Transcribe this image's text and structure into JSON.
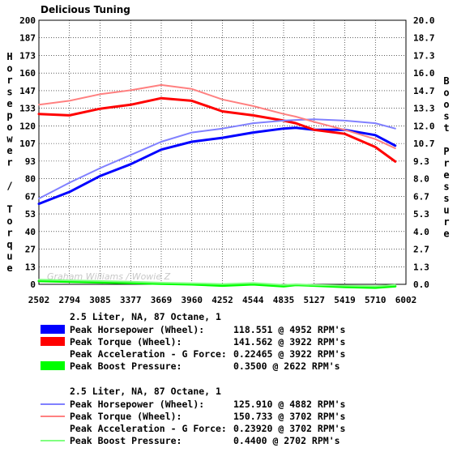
{
  "chart_data": {
    "type": "line",
    "title": "Delicious Tuning",
    "watermark": "Graham Williams / Wowie Z",
    "left_axis": {
      "label": "Horsepower / Torque",
      "range": [
        0,
        200
      ],
      "ticks": [
        "0",
        "13",
        "27",
        "40",
        "53",
        "67",
        "80",
        "93",
        "107",
        "120",
        "133",
        "147",
        "160",
        "173",
        "187",
        "200"
      ]
    },
    "right_axis": {
      "label": "Boost Pressure",
      "range": [
        0,
        20
      ],
      "ticks": [
        "0.0",
        "1.3",
        "2.7",
        "4.0",
        "5.3",
        "6.7",
        "8.0",
        "9.3",
        "10.7",
        "12.0",
        "13.3",
        "14.7",
        "16.0",
        "17.3",
        "18.7",
        "20.0"
      ]
    },
    "x_axis": {
      "range": [
        2502,
        6002
      ],
      "ticks": [
        "2502",
        "2794",
        "3085",
        "3377",
        "3669",
        "3960",
        "4252",
        "4544",
        "4835",
        "5127",
        "5419",
        "5710",
        "6002"
      ]
    },
    "grid": true,
    "x": [
      2502,
      2794,
      3085,
      3377,
      3669,
      3960,
      4252,
      4544,
      4835,
      4952,
      5127,
      5419,
      5710,
      5900
    ],
    "series": [
      {
        "name": "Peak Horsepower (Wheel)",
        "run": 1,
        "axis": "left",
        "color": "#0000ff",
        "width": 3,
        "values": [
          61,
          70,
          82,
          91,
          102,
          108,
          111,
          115,
          118,
          118.5,
          117,
          117,
          113,
          105
        ]
      },
      {
        "name": "Peak Torque (Wheel)",
        "run": 1,
        "axis": "left",
        "color": "#ff0000",
        "width": 3,
        "values": [
          129,
          128,
          133,
          136,
          141,
          139,
          131,
          128,
          124,
          122,
          117,
          114,
          104,
          93
        ]
      },
      {
        "name": "Peak Boost Pressure",
        "run": 1,
        "axis": "right",
        "color": "#00ff00",
        "width": 3,
        "values": [
          0.25,
          0.2,
          0.15,
          0.1,
          0.05,
          0.0,
          -0.1,
          0.0,
          -0.15,
          -0.05,
          -0.1,
          -0.2,
          -0.25,
          -0.15
        ]
      },
      {
        "name": "Peak Horsepower (Wheel)",
        "run": 2,
        "axis": "left",
        "color": "#8080ff",
        "width": 2,
        "values": [
          65,
          77,
          88,
          98,
          108,
          115,
          118,
          122,
          124,
          124.5,
          125,
          124,
          122,
          118
        ]
      },
      {
        "name": "Peak Torque (Wheel)",
        "run": 2,
        "axis": "left",
        "color": "#ff8080",
        "width": 2,
        "values": [
          136,
          139,
          144,
          147,
          151,
          148,
          140,
          135,
          129,
          127,
          123,
          117,
          110,
          103
        ]
      },
      {
        "name": "Peak Boost Pressure",
        "run": 2,
        "axis": "right",
        "color": "#80ff80",
        "width": 2,
        "values": [
          0.35,
          0.3,
          0.25,
          0.2,
          0.12,
          0.08,
          0.02,
          0.1,
          -0.05,
          0.0,
          -0.05,
          -0.1,
          -0.15,
          -0.05
        ]
      }
    ]
  },
  "legend": {
    "groups": [
      {
        "title": "2.5 Liter, NA, 87 Octane, 1",
        "rows": [
          {
            "label": "Peak Horsepower (Wheel):",
            "value": "118.551 @ 4952 RPM's",
            "color": "#0000ff",
            "swatch": "box"
          },
          {
            "label": "Peak Torque (Wheel):",
            "value": "141.562 @ 3922 RPM's",
            "color": "#ff0000",
            "swatch": "box"
          },
          {
            "label": "Peak Acceleration - G Force:",
            "value": "0.22465 @ 3922 RPM's",
            "color": "",
            "swatch": "none"
          },
          {
            "label": "Peak Boost Pressure:",
            "value": "0.3500 @ 2622 RPM's",
            "color": "#00ff00",
            "swatch": "box"
          }
        ]
      },
      {
        "title": "2.5 Liter, NA, 87 Octane, 1",
        "rows": [
          {
            "label": "Peak Horsepower (Wheel):",
            "value": "125.910 @ 4882 RPM's",
            "color": "#8080ff",
            "swatch": "line"
          },
          {
            "label": "Peak Torque (Wheel):",
            "value": "150.733 @ 3702 RPM's",
            "color": "#ff8080",
            "swatch": "line"
          },
          {
            "label": "Peak Acceleration - G Force:",
            "value": "0.23920 @ 3702 RPM's",
            "color": "",
            "swatch": "none"
          },
          {
            "label": "Peak Boost Pressure:",
            "value": "0.4400 @ 2702 RPM's",
            "color": "#80ff80",
            "swatch": "line"
          }
        ]
      }
    ]
  }
}
